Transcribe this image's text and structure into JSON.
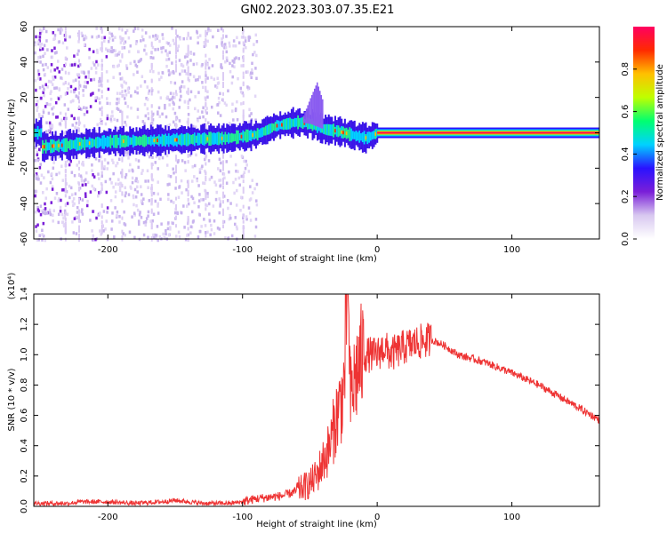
{
  "figure": {
    "title": "GN02.2023.303.07.35.E21"
  },
  "chart_data": [
    {
      "type": "heatmap",
      "title": "GN02.2023.303.07.35.E21",
      "xlabel": "Height of straight line (km)",
      "ylabel": "Frequency (Hz)",
      "xlim": [
        -255,
        165
      ],
      "ylim": [
        -60,
        60
      ],
      "xticks": [
        -200,
        -100,
        0,
        100
      ],
      "yticks": [
        -60,
        -40,
        -20,
        0,
        20,
        40,
        60
      ],
      "colorbar": {
        "label": "Normalized spectral amplitude",
        "range": [
          0,
          1
        ],
        "ticks": [
          0.0,
          0.2,
          0.4,
          0.6,
          0.8
        ],
        "colormap": [
          "#ffffff",
          "#d8c8f0",
          "#7a1fd8",
          "#2a12ff",
          "#00d2ff",
          "#00ff70",
          "#bfff00",
          "#ffc000",
          "#ff2a00",
          "#ff0060"
        ]
      },
      "ridge": {
        "description_points": [
          [
            -250,
            -8
          ],
          [
            -200,
            -5
          ],
          [
            -150,
            -4
          ],
          [
            -110,
            -3
          ],
          [
            -90,
            -1
          ],
          [
            -75,
            4
          ],
          [
            -60,
            6
          ],
          [
            -50,
            5
          ],
          [
            -40,
            2
          ],
          [
            -30,
            1
          ],
          [
            -15,
            -2
          ],
          [
            -8,
            -3
          ],
          [
            0,
            0
          ],
          [
            165,
            0
          ]
        ],
        "peak_band_x": [
          0,
          165
        ],
        "peak_band_freq": 0
      }
    },
    {
      "type": "line",
      "xlabel": "Height of straight line (km)",
      "ylabel": "SNR (10 * v/v)",
      "yscale_note": "(x10⁴)",
      "xlim": [
        -255,
        165
      ],
      "ylim": [
        0,
        1.4
      ],
      "xticks": [
        -200,
        -100,
        0,
        100
      ],
      "yticks": [
        0.0,
        0.2,
        0.4,
        0.6,
        0.8,
        1.0,
        1.2,
        1.4
      ],
      "ytick_labels": [
        "0.0",
        "0.2",
        "0.4",
        "0.6",
        "0.8",
        "1.0",
        "1.2",
        "1.4"
      ],
      "series": [
        {
          "color": "#ee3333",
          "x": [
            -255,
            -230,
            -220,
            -200,
            -180,
            -160,
            -150,
            -130,
            -110,
            -100,
            -90,
            -80,
            -70,
            -60,
            -50,
            -45,
            -40,
            -35,
            -30,
            -25,
            -22,
            -20,
            -15,
            -10,
            -5,
            0,
            5,
            10,
            20,
            30,
            40,
            50,
            60,
            80,
            100,
            120,
            140,
            165
          ],
          "values": [
            0.02,
            0.02,
            0.03,
            0.03,
            0.02,
            0.03,
            0.04,
            0.02,
            0.02,
            0.03,
            0.05,
            0.06,
            0.07,
            0.1,
            0.15,
            0.2,
            0.3,
            0.4,
            0.6,
            0.75,
            1.4,
            0.7,
            0.9,
            1.0,
            1.0,
            1.0,
            1.05,
            1.0,
            1.05,
            1.08,
            1.1,
            1.06,
            1.0,
            0.95,
            0.88,
            0.8,
            0.7,
            0.57
          ]
        }
      ]
    }
  ]
}
